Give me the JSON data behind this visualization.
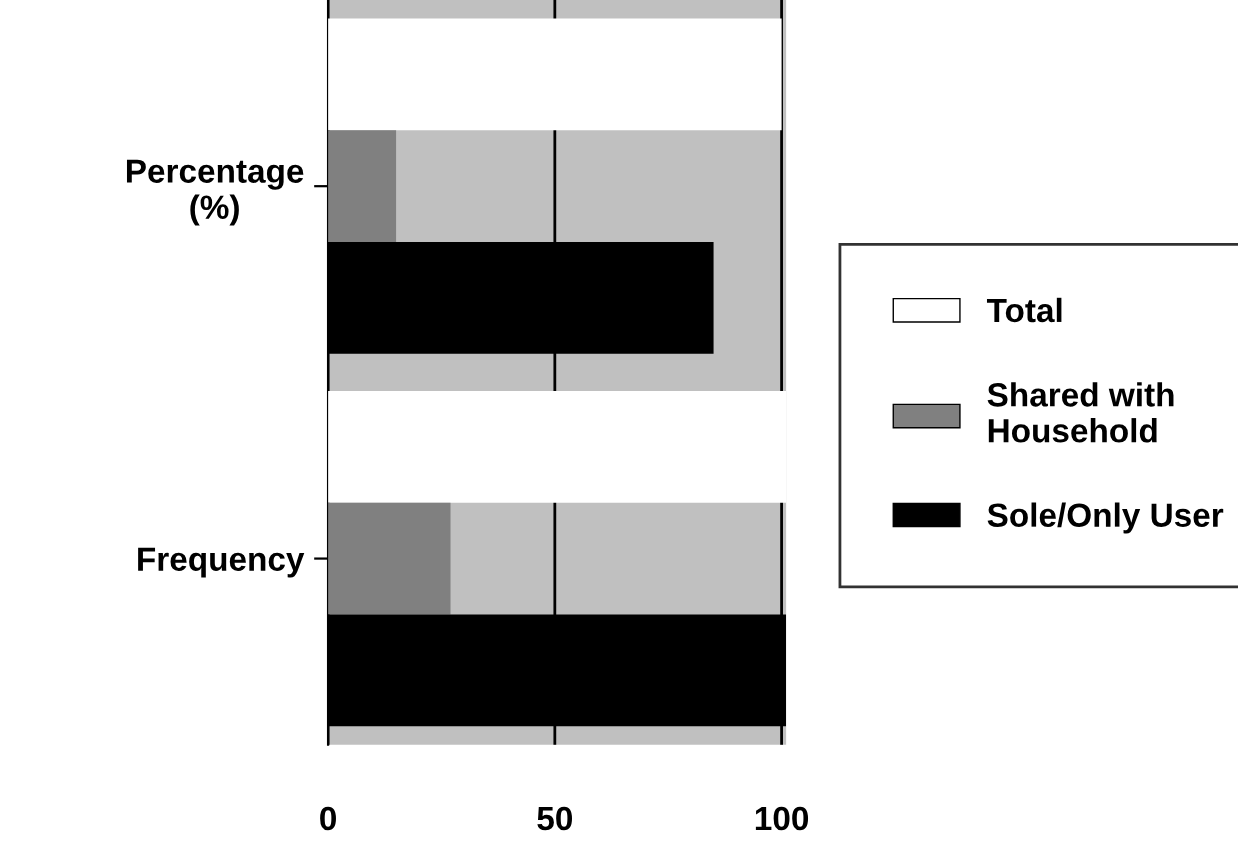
{
  "chart_data": {
    "type": "bar",
    "orientation": "horizontal",
    "categories": [
      "Percentage (%)",
      "Frequency"
    ],
    "series": [
      {
        "name": "Total",
        "color": "#ffffff",
        "values": [
          100,
          101
        ]
      },
      {
        "name": "Shared with Household",
        "color": "#808080",
        "values": [
          15,
          27
        ]
      },
      {
        "name": "Sole/Only User",
        "color": "#000000",
        "values": [
          85,
          101
        ]
      }
    ],
    "xlim": [
      0,
      101
    ],
    "xticks": [
      0,
      50,
      100
    ],
    "grid": "x",
    "legend": "right"
  }
}
